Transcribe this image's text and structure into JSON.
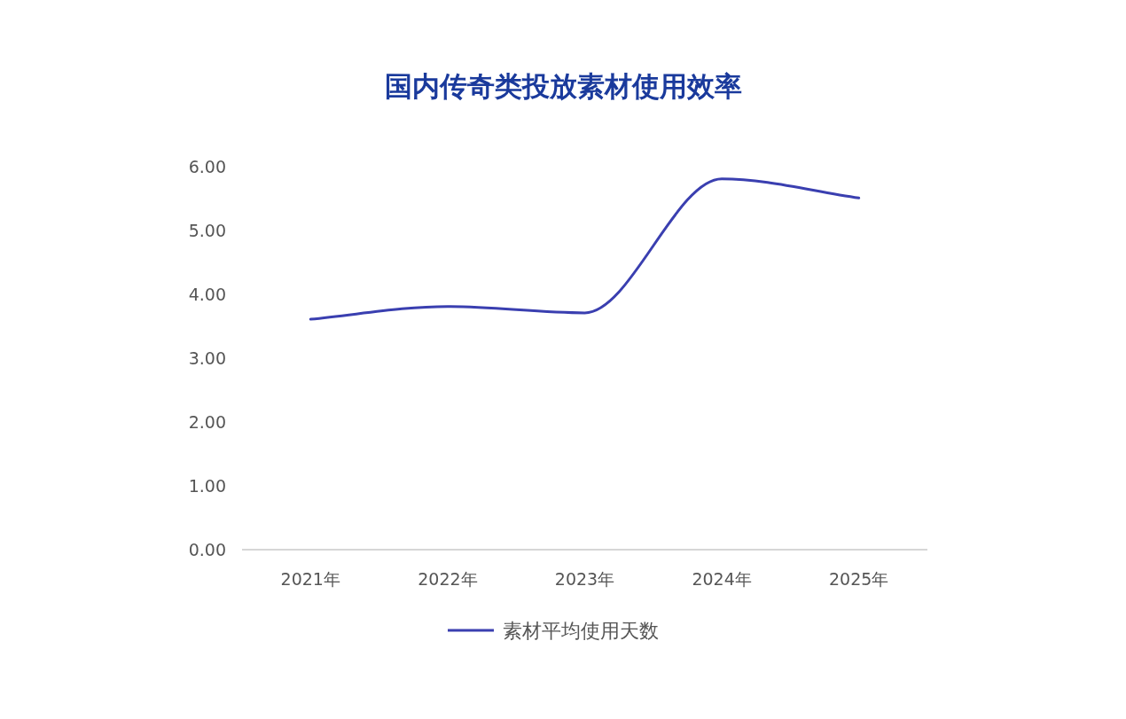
{
  "chart_data": {
    "type": "line",
    "title": "国内传奇类投放素材使用效率",
    "categories": [
      "2021年",
      "2022年",
      "2023年",
      "2024年",
      "2025年"
    ],
    "series": [
      {
        "name": "素材平均使用天数",
        "color": "#3a3fb0",
        "values": [
          3.61,
          3.81,
          3.71,
          5.81,
          5.51
        ]
      }
    ],
    "ylim": [
      0,
      6
    ],
    "yticks": [
      {
        "value": 0,
        "label": "0.00"
      },
      {
        "value": 1,
        "label": "1.00"
      },
      {
        "value": 2,
        "label": "2.00"
      },
      {
        "value": 3,
        "label": "3.00"
      },
      {
        "value": 4,
        "label": "4.00"
      },
      {
        "value": 5,
        "label": "5.00"
      },
      {
        "value": 6,
        "label": "6.00"
      }
    ],
    "grid": false,
    "legend": "bottom"
  }
}
